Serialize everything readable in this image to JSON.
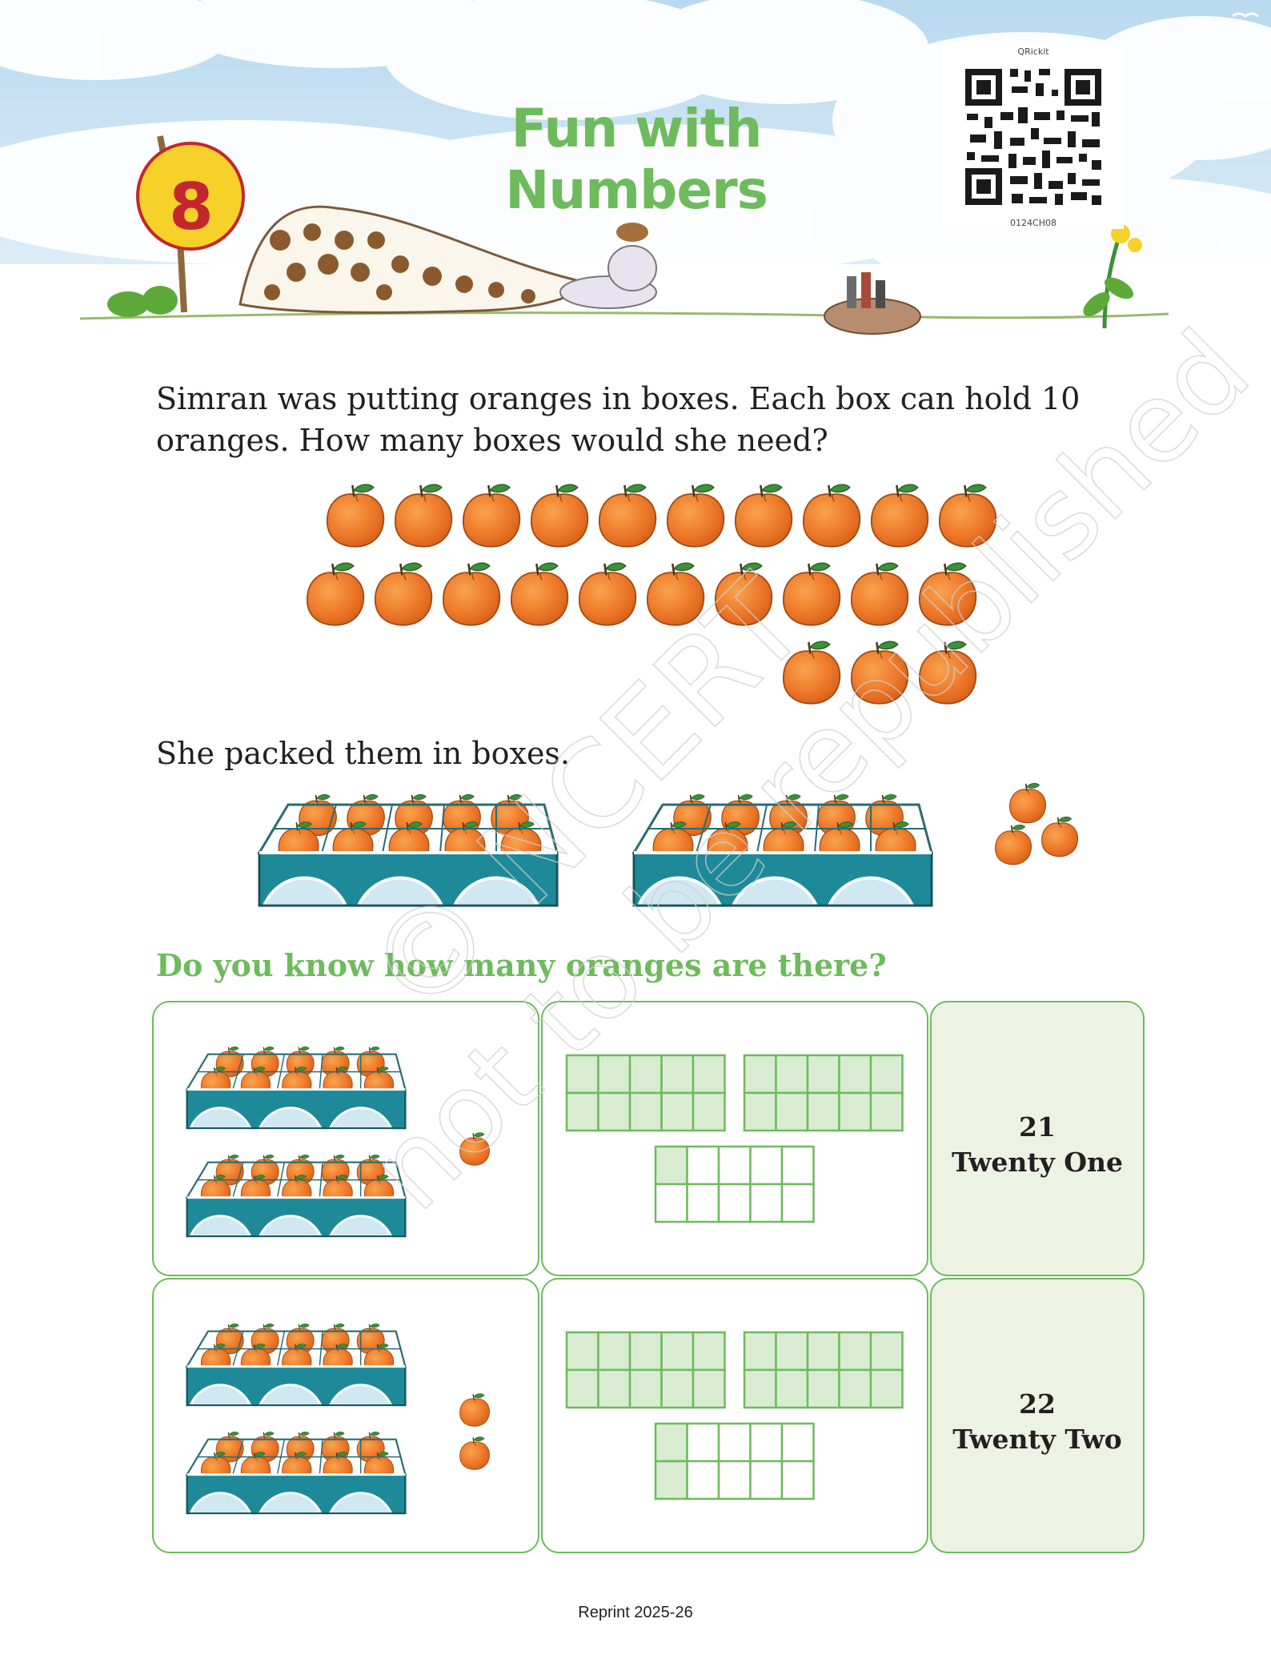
{
  "header": {
    "chapter_number": "8",
    "chapter_title": "Fun with Numbers",
    "qr_brand": "QRickit",
    "qr_code_id": "0124CH08"
  },
  "content": {
    "question_line_1": "Simran was putting oranges in boxes. Each box can hold 10",
    "question_line_2": "oranges. How many boxes would she need?",
    "packed_text": "She packed them in boxes.",
    "subheading": "Do you know how many oranges are there?"
  },
  "loose_oranges": {
    "row1": 10,
    "row2": 10,
    "row3": 3
  },
  "table": {
    "rows": [
      {
        "boxes": 2,
        "loose": 1,
        "tens_frames_full": 2,
        "partial_filled": 1,
        "number": "21",
        "words": "Twenty One"
      },
      {
        "boxes": 2,
        "loose": 2,
        "tens_frames_full": 2,
        "partial_filled": 2,
        "number": "22",
        "words": "Twenty Two"
      }
    ]
  },
  "watermark": {
    "line1": "© NCERT",
    "line2": "not to be republished"
  },
  "colors": {
    "title_green": "#6dbb5c",
    "orange": "#f07f2a",
    "number_red": "#c4262e",
    "frame_fill": "#d9ecd2",
    "box_teal": "#1e8a99"
  },
  "footer": {
    "reprint": "Reprint 2025-26"
  }
}
